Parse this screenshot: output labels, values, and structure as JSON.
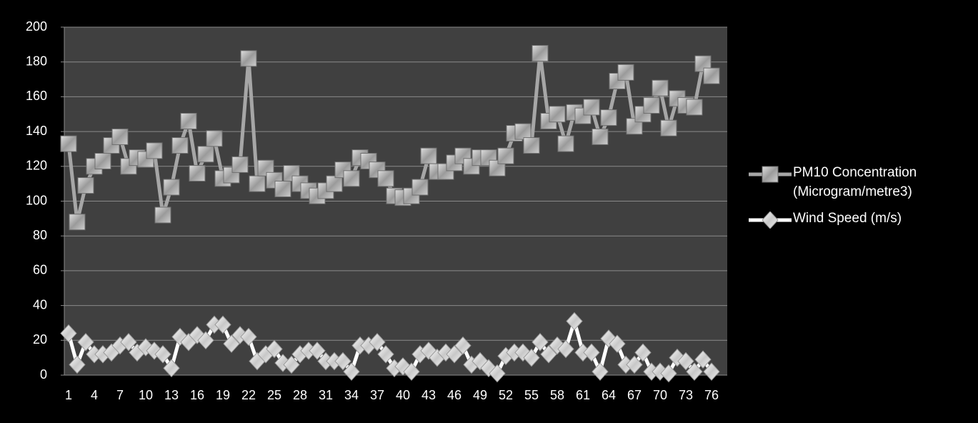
{
  "chart_data": {
    "type": "line",
    "categories": [
      "1",
      null,
      null,
      "4",
      null,
      null,
      "7",
      null,
      null,
      "10",
      null,
      null,
      "13",
      null,
      null,
      "16",
      null,
      null,
      "19",
      null,
      null,
      "22",
      null,
      null,
      "25",
      null,
      null,
      "28",
      null,
      null,
      "31",
      null,
      null,
      "34",
      null,
      null,
      "37",
      null,
      null,
      "40",
      null,
      null,
      "43",
      null,
      null,
      "46",
      null,
      null,
      "49",
      null,
      null,
      "52",
      null,
      null,
      "55",
      null,
      null,
      "58",
      null,
      null,
      "61",
      null,
      null,
      "64",
      null,
      null,
      "67",
      null,
      null,
      "70",
      null,
      null,
      "73",
      null,
      null,
      "76"
    ],
    "series": [
      {
        "name": "PM10 Concentration (Microgram/metre3)",
        "color": "#a6a6a6",
        "marker": "square",
        "values": [
          133,
          88,
          109,
          120,
          123,
          132,
          137,
          120,
          125,
          124,
          129,
          92,
          108,
          132,
          146,
          116,
          127,
          136,
          113,
          115,
          121,
          182,
          110,
          119,
          112,
          107,
          116,
          110,
          106,
          103,
          106,
          110,
          118,
          113,
          125,
          123,
          118,
          113,
          103,
          102,
          103,
          108,
          126,
          117,
          117,
          122,
          126,
          120,
          125,
          125,
          119,
          126,
          139,
          140,
          132,
          185,
          146,
          150,
          133,
          151,
          149,
          154,
          137,
          148,
          169,
          174,
          143,
          150,
          155,
          165,
          142,
          159,
          155,
          154,
          179,
          172
        ]
      },
      {
        "name": "Wind Speed (m/s)",
        "color": "#ffffff",
        "marker": "diamond",
        "values": [
          24,
          6,
          19,
          12,
          12,
          13,
          17,
          19,
          13,
          16,
          14,
          12,
          4,
          22,
          19,
          23,
          20,
          29,
          29,
          18,
          23,
          22,
          8,
          12,
          15,
          7,
          6,
          12,
          14,
          14,
          8,
          8,
          8,
          2,
          17,
          17,
          19,
          12,
          4,
          5,
          2,
          12,
          14,
          10,
          13,
          12,
          17,
          6,
          8,
          4,
          1,
          11,
          13,
          13,
          10,
          19,
          12,
          17,
          15,
          31,
          13,
          13,
          2,
          21,
          18,
          6,
          6,
          13,
          2,
          2,
          1,
          10,
          8,
          2,
          9,
          2
        ]
      }
    ],
    "ylim": [
      0,
      200
    ],
    "yticks": [
      0,
      20,
      40,
      60,
      80,
      100,
      120,
      140,
      160,
      180,
      200
    ],
    "grid": true,
    "legend": "right"
  }
}
